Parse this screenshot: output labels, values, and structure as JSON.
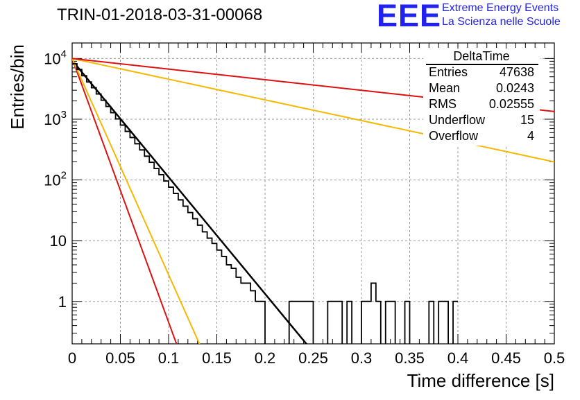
{
  "header": {
    "title": "TRIN-01-2018-03-31-00068",
    "logo": {
      "mark": "EEE",
      "line1": "Extreme Energy Events",
      "line2": "La Scienza nelle Scuole",
      "color": "#2222ee"
    }
  },
  "colors": {
    "histogram": "#000000",
    "fit": "#000000",
    "red_curves": "#dd1111",
    "orange_curves": "#f5b800",
    "grid": "#9a9a9a"
  },
  "stats_box": {
    "title": "DeltaTime",
    "rows": [
      {
        "label": "Entries",
        "value": "47638"
      },
      {
        "label": "Mean",
        "value": "0.0243"
      },
      {
        "label": "RMS",
        "value": "0.02555"
      },
      {
        "label": "Underflow",
        "value": "15"
      },
      {
        "label": "Overflow",
        "value": "4"
      }
    ]
  },
  "chart_data": {
    "type": "histogram",
    "title": "TRIN-01-2018-03-31-00068",
    "xlabel": "Time difference [s]",
    "ylabel": "Entries/bin",
    "xlim": [
      0,
      0.5
    ],
    "ylim": [
      0.2,
      18000
    ],
    "yscale": "log",
    "grid": true,
    "x_ticks": [
      {
        "value": 0,
        "label": "0"
      },
      {
        "value": 0.05,
        "label": "0.05"
      },
      {
        "value": 0.1,
        "label": "0.1"
      },
      {
        "value": 0.15,
        "label": "0.15"
      },
      {
        "value": 0.2,
        "label": "0.2"
      },
      {
        "value": 0.25,
        "label": "0.25"
      },
      {
        "value": 0.3,
        "label": "0.3"
      },
      {
        "value": 0.35,
        "label": "0.35"
      },
      {
        "value": 0.4,
        "label": "0.4"
      },
      {
        "value": 0.45,
        "label": "0.45"
      },
      {
        "value": 0.5,
        "label": "0.5"
      }
    ],
    "y_ticks": [
      {
        "value": 1,
        "base": "1",
        "exp": ""
      },
      {
        "value": 10,
        "base": "10",
        "exp": ""
      },
      {
        "value": 100,
        "base": "10",
        "exp": "2"
      },
      {
        "value": 1000,
        "base": "10",
        "exp": "3"
      },
      {
        "value": 10000,
        "base": "10",
        "exp": "4"
      }
    ],
    "histogram": {
      "bin_width": 0.005,
      "x_start": 0,
      "counts": [
        8200,
        6600,
        5200,
        4100,
        3300,
        2600,
        2050,
        1620,
        1280,
        1010,
        800,
        630,
        500,
        395,
        312,
        246,
        195,
        154,
        122,
        96,
        76,
        60,
        47,
        37,
        29,
        23,
        18,
        14,
        11,
        9,
        7,
        5.5,
        4,
        3.5,
        2.5,
        2,
        2,
        1.5,
        1,
        1,
        0,
        0,
        0,
        0,
        0,
        1,
        1,
        1,
        1,
        1,
        0,
        0,
        0,
        1,
        1,
        1,
        0,
        1,
        0,
        0,
        1,
        1,
        2,
        1,
        0,
        1,
        1,
        0,
        0,
        1,
        0,
        0,
        0,
        0,
        1,
        0,
        1,
        1,
        0,
        1
      ]
    },
    "curves": [
      {
        "kind": "fit",
        "color": "#000000",
        "amplitude": 9300,
        "tau": 0.0226,
        "x_range": [
          0,
          0.262
        ]
      },
      {
        "kind": "red",
        "color": "#dd1111",
        "amplitude": 10000,
        "tau": 0.01,
        "x_range": [
          0,
          0.5
        ]
      },
      {
        "kind": "orange",
        "color": "#f5b800",
        "amplitude": 10000,
        "tau": 0.0122,
        "x_range": [
          0,
          0.5
        ]
      },
      {
        "kind": "orange",
        "color": "#f5b800",
        "amplitude": 10000,
        "tau": 0.1275,
        "x_range": [
          0,
          0.5
        ]
      },
      {
        "kind": "red",
        "color": "#dd1111",
        "amplitude": 10000,
        "tau": 0.2487,
        "x_range": [
          0,
          0.5
        ]
      }
    ]
  }
}
